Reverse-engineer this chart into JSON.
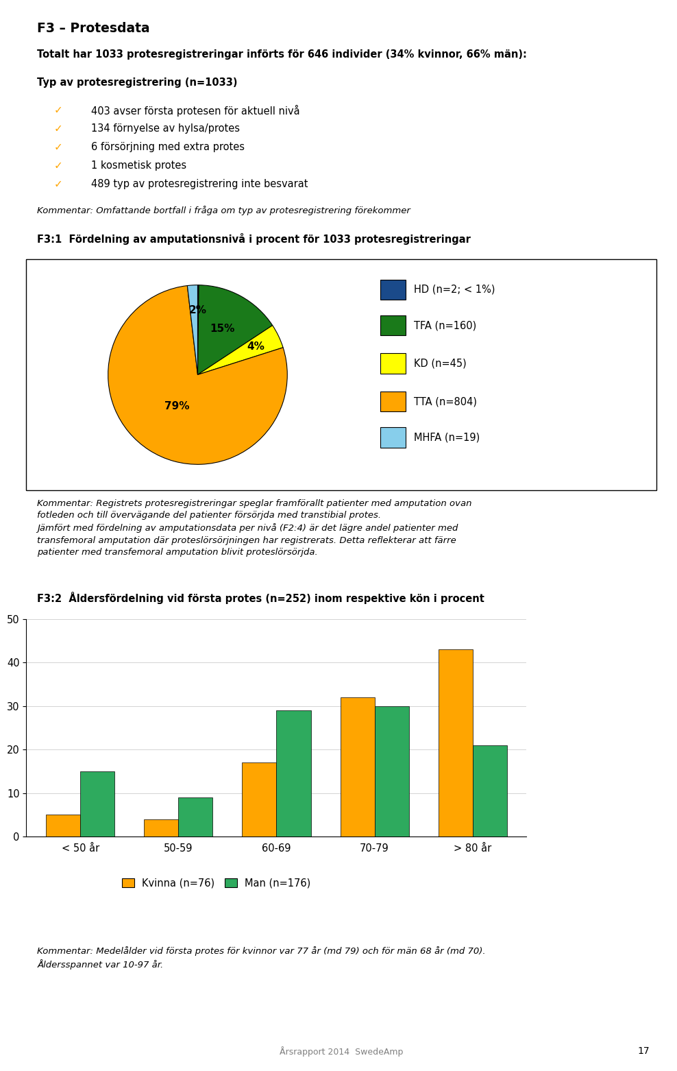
{
  "title": "F3 – Protesdata",
  "intro_bold": "Totalt har 1033 protesregistreringar införts för 646 individer (34% kvinnor, 66% män):",
  "section_title": "Typ av protesregistrering (n=1033)",
  "bullet_items": [
    "403 avser första protesen för aktuell nivå",
    "134 förnyelse av hylsa/protes",
    "6 försörjning med extra protes",
    "1 kosmetisk protes",
    "489 typ av protesregistrering inte besvarat"
  ],
  "kommentar1": "Kommentar: Omfattande bortfall i fråga om typ av protesregistrering förekommer",
  "f3_1_title": "F3:1  Fördelning av amputationsnivå i procent för 1033 protesregistreringar",
  "pie_labels": [
    "HD (n=2; < 1%)",
    "TFA (n=160)",
    "KD (n=45)",
    "TTA (n=804)",
    "MHFA (n=19)"
  ],
  "pie_values": [
    2,
    160,
    45,
    804,
    19
  ],
  "pie_colors": [
    "#1A4A8A",
    "#1A7A1A",
    "#FFFF00",
    "#FFA500",
    "#87CEEB"
  ],
  "kommentar2": "Kommentar: Registrets protesregistreringar speglar framförallt patienter med amputation ovan\nfotleden och till övervägande del patienter försörjda med transtibial protes.\nJämfört med fördelning av amputationsdata per nivå (F2:4) är det lägre andel patienter med\ntransfemoral amputation där proteslörsörjningen har registrerats. Detta reflekterar att färre\npatienter med transfemoral amputation blivit proteslörsörjda.",
  "f3_2_title": "F3:2  Åldersfördelning vid första protes (n=252) inom respektive kön i procent",
  "bar_categories": [
    "< 50 år",
    "50-59",
    "60-69",
    "70-79",
    "> 80 år"
  ],
  "bar_kvinna": [
    5,
    4,
    17,
    32,
    43
  ],
  "bar_man": [
    15,
    9,
    29,
    30,
    21
  ],
  "bar_color_kvinna": "#FFA500",
  "bar_color_man": "#2EAA5E",
  "legend_kvinna": "Kvinna (n=76)",
  "legend_man": "Man (n=176)",
  "bar_ylim": [
    0,
    50
  ],
  "bar_yticks": [
    0,
    10,
    20,
    30,
    40,
    50
  ],
  "footer": "Årsrapport 2014  SwedeAmp",
  "page_number": "17",
  "kommentar3": "Kommentar: Medelålder vid första protes för kvinnor var 77 år (md 79) och för män 68 år (md 70).\nÅldersspannet var 10-97 år.",
  "background_color": "#FFFFFF",
  "checkmark_color": "#FFA500"
}
